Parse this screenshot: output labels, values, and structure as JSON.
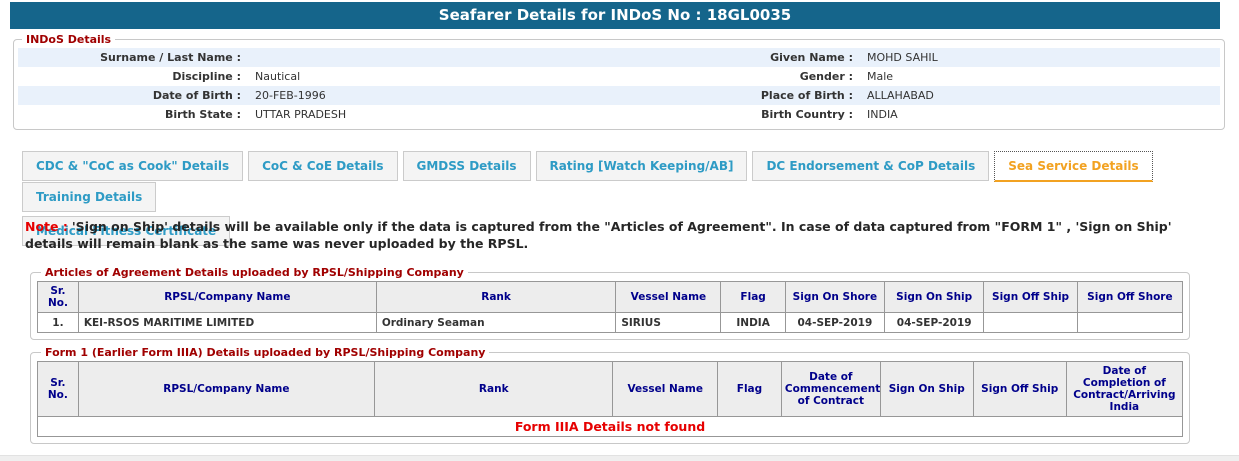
{
  "header": {
    "title": "Seafarer Details for INDoS No : 18GL0035"
  },
  "indos_details": {
    "legend": "INDoS Details",
    "rows": [
      {
        "label_left": "Surname / Last Name :",
        "value_left": "",
        "label_right": "Given Name :",
        "value_right": "MOHD SAHIL"
      },
      {
        "label_left": "Discipline :",
        "value_left": "Nautical",
        "label_right": "Gender :",
        "value_right": "Male"
      },
      {
        "label_left": "Date of Birth :",
        "value_left": "20-FEB-1996",
        "label_right": "Place of Birth :",
        "value_right": "ALLAHABAD"
      },
      {
        "label_left": "Birth State :",
        "value_left": "UTTAR PRADESH",
        "label_right": "Birth Country :",
        "value_right": "INDIA"
      }
    ]
  },
  "tabs": {
    "row1": [
      {
        "id": "cdc-coc-as-cook-details",
        "label": "CDC & \"CoC as Cook\" Details",
        "active": false
      },
      {
        "id": "coc-coe-details",
        "label": "CoC & CoE Details",
        "active": false
      },
      {
        "id": "gmdss-details",
        "label": "GMDSS Details",
        "active": false
      },
      {
        "id": "rating-watch-keeping-ab",
        "label": "Rating [Watch Keeping/AB]",
        "active": false
      },
      {
        "id": "dc-endorsement-cop-details",
        "label": "DC Endorsement & CoP Details",
        "active": false
      },
      {
        "id": "sea-service-details",
        "label": "Sea Service Details",
        "active": true
      },
      {
        "id": "training-details",
        "label": "Training Details",
        "active": false
      }
    ],
    "row2": [
      {
        "id": "medical-fitness-certificate",
        "label": "Medical Fitness Certificate",
        "active": false
      }
    ]
  },
  "note": {
    "prefix": "Note :",
    "text": "'Sign on Ship' details will be available only if the data is captured from the \"Articles of Agreement\". In case of data captured from \"FORM 1\" , 'Sign on Ship' details will remain blank as the same was never uploaded by the RPSL."
  },
  "articles_table": {
    "legend": "Articles of Agreement Details uploaded by RPSL/Shipping Company",
    "headers": [
      "Sr. No.",
      "RPSL/Company Name",
      "Rank",
      "Vessel Name",
      "Flag",
      "Sign On Shore",
      "Sign On Ship",
      "Sign Off Ship",
      "Sign Off Shore"
    ],
    "rows": [
      [
        "1.",
        "KEI-RSOS MARITIME LIMITED",
        "Ordinary Seaman",
        "SIRIUS",
        "INDIA",
        "04-SEP-2019",
        "04-SEP-2019",
        "",
        ""
      ]
    ]
  },
  "form1_table": {
    "legend": "Form 1 (Earlier Form IIIA) Details uploaded by RPSL/Shipping Company",
    "headers": [
      "Sr. No.",
      "RPSL/Company Name",
      "Rank",
      "Vessel Name",
      "Flag",
      "Date of Commencement of Contract",
      "Sign On Ship",
      "Sign Off Ship",
      "Date of Completion of Contract/Arriving India"
    ],
    "empty_message": "Form IIIA Details not found"
  },
  "colors": {
    "title_bar_bg": "#15658b",
    "legend_red": "#a00000",
    "tab_text": "#2e9bc5",
    "tab_active_text": "#f2a221",
    "table_header_text": "#00008b",
    "note_red": "#e60000",
    "alt_row_bg": "#e9f1fb"
  }
}
